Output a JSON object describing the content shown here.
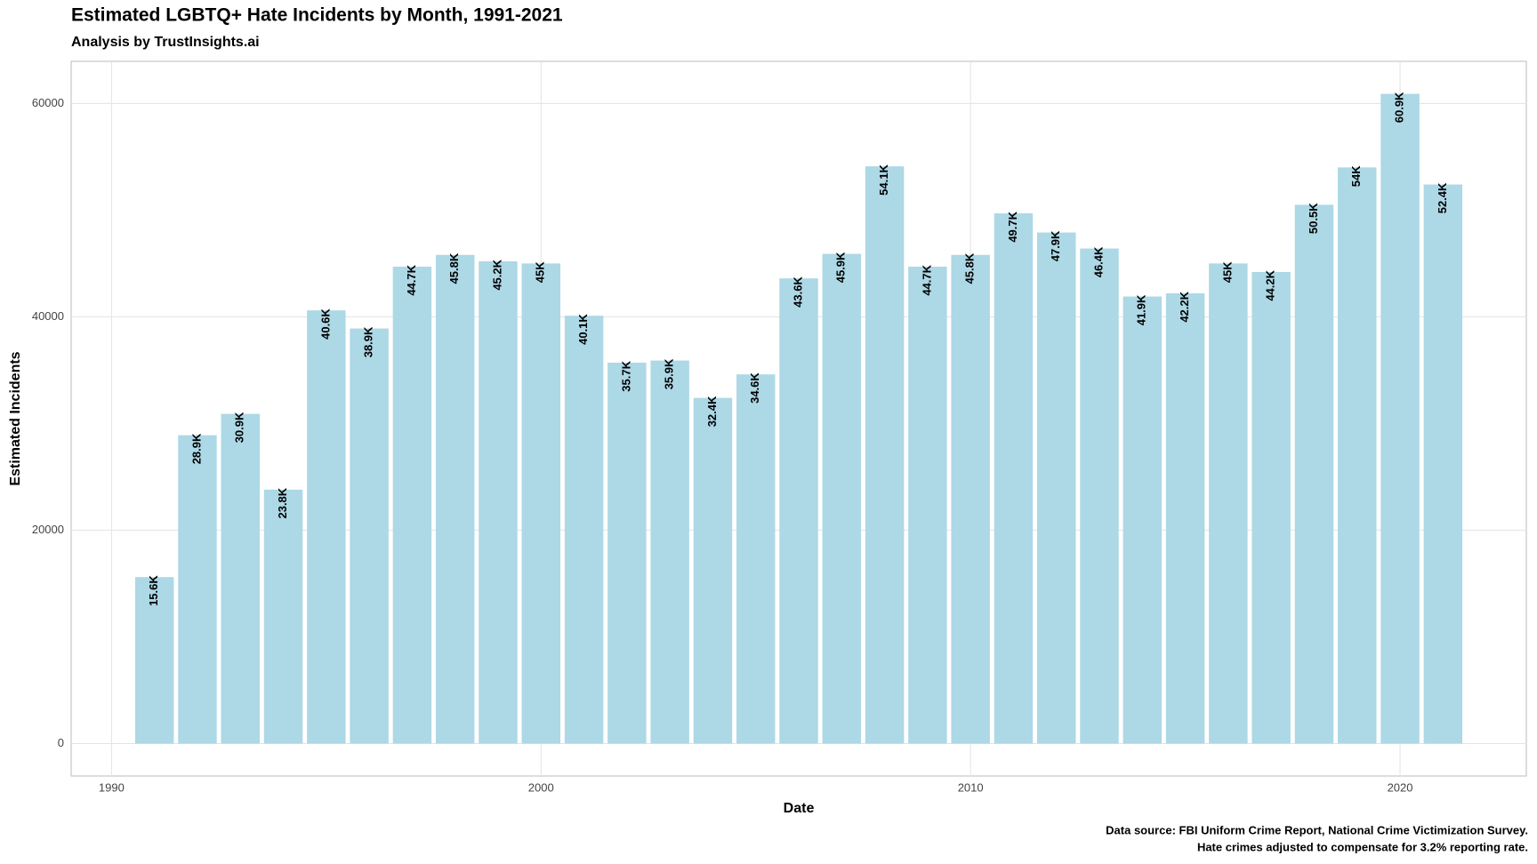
{
  "chart_data": {
    "type": "bar",
    "title": "Estimated LGBTQ+ Hate Incidents by Month, 1991-2021",
    "subtitle": "Analysis by TrustInsights.ai",
    "x_label": "Date",
    "y_label": "Estimated Incidents",
    "caption": [
      "Data source: FBI Uniform Crime Report, National Crime Victimization Survey.",
      "Hate crimes adjusted to compensate for 3.2% reporting rate."
    ],
    "x": [
      1991,
      1992,
      1993,
      1994,
      1995,
      1996,
      1997,
      1998,
      1999,
      2000,
      2001,
      2002,
      2003,
      2004,
      2005,
      2006,
      2007,
      2008,
      2009,
      2010,
      2011,
      2012,
      2013,
      2014,
      2015,
      2016,
      2017,
      2018,
      2019,
      2020,
      2021
    ],
    "values": [
      15600,
      28900,
      30900,
      23800,
      40600,
      38900,
      44700,
      45800,
      45200,
      45000,
      40100,
      35700,
      35900,
      32400,
      34600,
      43600,
      45900,
      54100,
      44700,
      45800,
      49700,
      47900,
      46400,
      41900,
      42200,
      45000,
      44200,
      50500,
      54000,
      60900,
      52400
    ],
    "value_labels": [
      "15.6K",
      "28.9K",
      "30.9K",
      "23.8K",
      "40.6K",
      "38.9K",
      "44.7K",
      "45.8K",
      "45.2K",
      "45K",
      "40.1K",
      "35.7K",
      "35.9K",
      "32.4K",
      "34.6K",
      "43.6K",
      "45.9K",
      "54.1K",
      "44.7K",
      "45.8K",
      "49.7K",
      "47.9K",
      "46.4K",
      "41.9K",
      "42.2K",
      "45K",
      "44.2K",
      "50.5K",
      "54K",
      "60.9K",
      "52.4K"
    ],
    "color": "#add8e6",
    "xlim": [
      1989.06,
      2022.94
    ],
    "xticks": [
      1990,
      2000,
      2010,
      2020
    ],
    "ylim": [
      -3045,
      63945
    ],
    "yticks": [
      0,
      20000,
      40000,
      60000
    ],
    "grid": true
  }
}
